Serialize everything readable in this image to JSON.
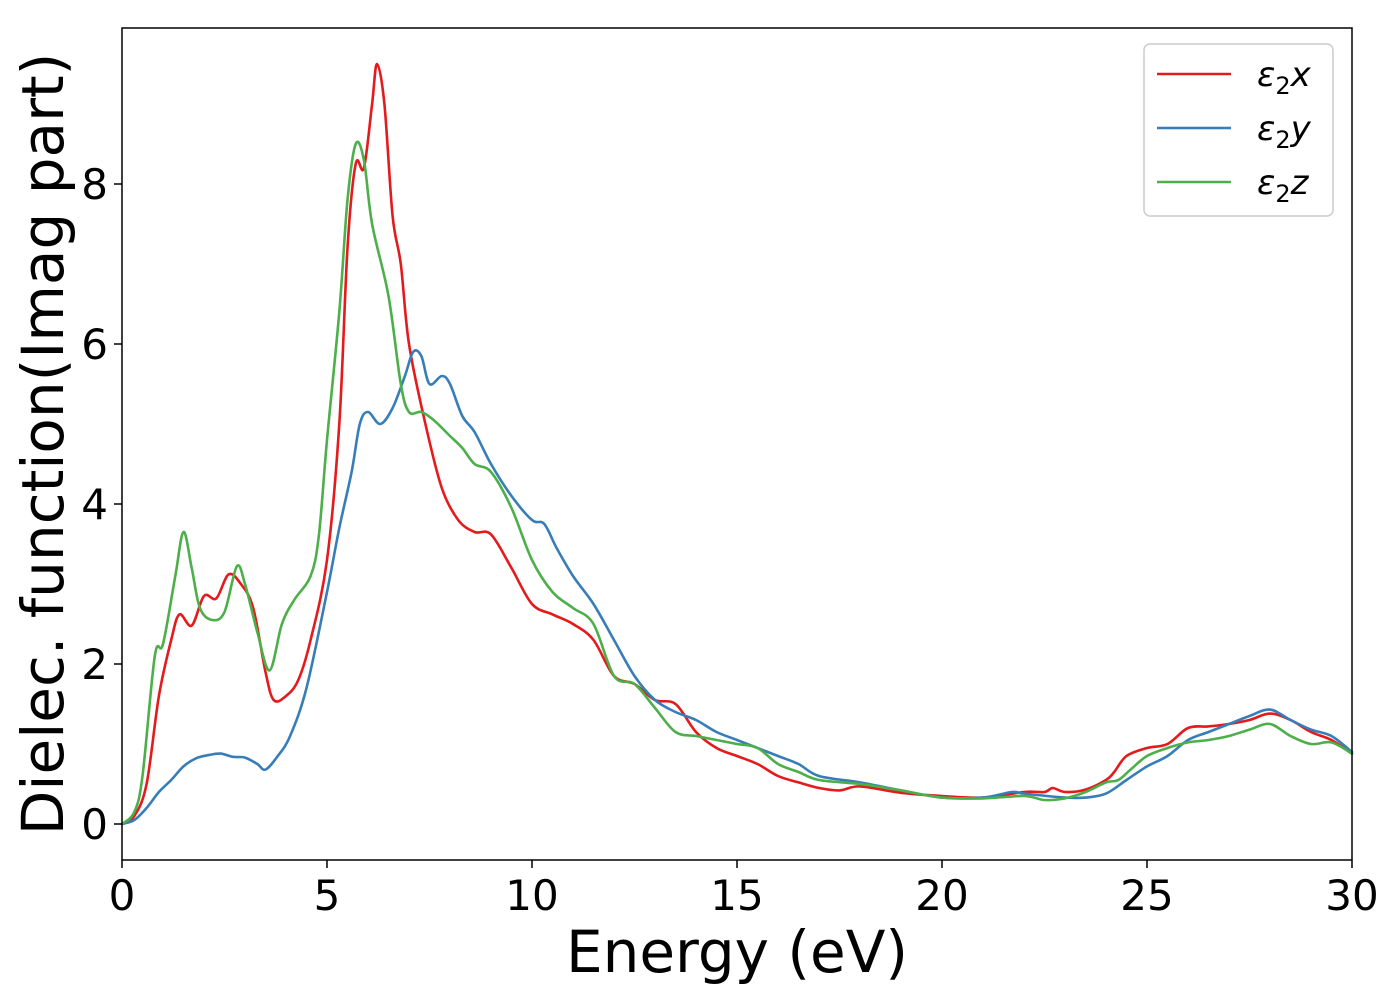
{
  "chart_data": {
    "type": "line",
    "xlabel": "Energy (eV)",
    "ylabel": "Dielec. function(Imag part)",
    "xlim": [
      0,
      30
    ],
    "ylim": [
      -0.45,
      9.95
    ],
    "xticks": [
      0,
      5,
      10,
      15,
      20,
      25,
      30
    ],
    "xtick_labels": [
      "0",
      "5",
      "10",
      "15",
      "20",
      "25",
      "30"
    ],
    "yticks": [
      0,
      2,
      4,
      6,
      8
    ],
    "ytick_labels": [
      "0",
      "2",
      "4",
      "6",
      "8"
    ],
    "grid": false,
    "legend_position": "top-right",
    "series": [
      {
        "name": "ε2x",
        "legend": {
          "base": "ε",
          "sub": "2",
          "tail": "x"
        },
        "color": "#e41a1c",
        "points": [
          [
            0,
            0
          ],
          [
            0.3,
            0.1
          ],
          [
            0.6,
            0.5
          ],
          [
            0.9,
            1.6
          ],
          [
            1.2,
            2.3
          ],
          [
            1.4,
            2.62
          ],
          [
            1.7,
            2.48
          ],
          [
            2.0,
            2.85
          ],
          [
            2.3,
            2.82
          ],
          [
            2.6,
            3.12
          ],
          [
            2.9,
            3.0
          ],
          [
            3.2,
            2.7
          ],
          [
            3.5,
            1.9
          ],
          [
            3.7,
            1.55
          ],
          [
            4.0,
            1.6
          ],
          [
            4.3,
            1.8
          ],
          [
            4.6,
            2.3
          ],
          [
            5.0,
            3.3
          ],
          [
            5.3,
            5.0
          ],
          [
            5.5,
            7.2
          ],
          [
            5.7,
            8.25
          ],
          [
            5.9,
            8.2
          ],
          [
            6.1,
            9.0
          ],
          [
            6.22,
            9.5
          ],
          [
            6.4,
            9.0
          ],
          [
            6.6,
            7.6
          ],
          [
            6.8,
            7.0
          ],
          [
            7.0,
            6.0
          ],
          [
            7.4,
            5.0
          ],
          [
            7.8,
            4.2
          ],
          [
            8.2,
            3.8
          ],
          [
            8.6,
            3.65
          ],
          [
            9.0,
            3.62
          ],
          [
            9.5,
            3.2
          ],
          [
            10.0,
            2.75
          ],
          [
            10.5,
            2.62
          ],
          [
            11.0,
            2.5
          ],
          [
            11.5,
            2.3
          ],
          [
            12.0,
            1.85
          ],
          [
            12.5,
            1.75
          ],
          [
            13.0,
            1.55
          ],
          [
            13.5,
            1.5
          ],
          [
            14.0,
            1.15
          ],
          [
            14.5,
            0.95
          ],
          [
            15.0,
            0.85
          ],
          [
            15.5,
            0.75
          ],
          [
            16.0,
            0.6
          ],
          [
            16.5,
            0.52
          ],
          [
            17.0,
            0.45
          ],
          [
            17.5,
            0.42
          ],
          [
            18.0,
            0.47
          ],
          [
            19.0,
            0.39
          ],
          [
            20.0,
            0.35
          ],
          [
            21.0,
            0.33
          ],
          [
            22.0,
            0.4
          ],
          [
            22.5,
            0.4
          ],
          [
            22.7,
            0.45
          ],
          [
            23.0,
            0.4
          ],
          [
            23.5,
            0.43
          ],
          [
            24.0,
            0.55
          ],
          [
            24.2,
            0.65
          ],
          [
            24.5,
            0.85
          ],
          [
            25.0,
            0.95
          ],
          [
            25.5,
            1.0
          ],
          [
            26.0,
            1.2
          ],
          [
            26.5,
            1.22
          ],
          [
            27.0,
            1.25
          ],
          [
            27.5,
            1.3
          ],
          [
            28.0,
            1.38
          ],
          [
            28.5,
            1.3
          ],
          [
            29.0,
            1.15
          ],
          [
            29.5,
            1.05
          ],
          [
            30.0,
            0.88
          ]
        ]
      },
      {
        "name": "ε2y",
        "legend": {
          "base": "ε",
          "sub": "2",
          "tail": "y"
        },
        "color": "#377eb8",
        "points": [
          [
            0,
            0
          ],
          [
            0.3,
            0.05
          ],
          [
            0.6,
            0.2
          ],
          [
            0.9,
            0.4
          ],
          [
            1.2,
            0.55
          ],
          [
            1.5,
            0.72
          ],
          [
            1.8,
            0.82
          ],
          [
            2.1,
            0.86
          ],
          [
            2.4,
            0.88
          ],
          [
            2.7,
            0.84
          ],
          [
            3.0,
            0.83
          ],
          [
            3.3,
            0.75
          ],
          [
            3.5,
            0.68
          ],
          [
            3.8,
            0.85
          ],
          [
            4.1,
            1.1
          ],
          [
            4.5,
            1.7
          ],
          [
            5.0,
            2.9
          ],
          [
            5.3,
            3.7
          ],
          [
            5.6,
            4.4
          ],
          [
            5.8,
            5.0
          ],
          [
            6.0,
            5.15
          ],
          [
            6.3,
            5.0
          ],
          [
            6.6,
            5.2
          ],
          [
            6.9,
            5.6
          ],
          [
            7.1,
            5.9
          ],
          [
            7.3,
            5.85
          ],
          [
            7.5,
            5.5
          ],
          [
            7.8,
            5.6
          ],
          [
            8.0,
            5.5
          ],
          [
            8.3,
            5.1
          ],
          [
            8.6,
            4.9
          ],
          [
            9.0,
            4.5
          ],
          [
            9.5,
            4.1
          ],
          [
            10.0,
            3.8
          ],
          [
            10.3,
            3.75
          ],
          [
            10.6,
            3.45
          ],
          [
            11.0,
            3.1
          ],
          [
            11.5,
            2.75
          ],
          [
            12.0,
            2.3
          ],
          [
            12.5,
            1.85
          ],
          [
            13.0,
            1.55
          ],
          [
            13.5,
            1.4
          ],
          [
            14.0,
            1.3
          ],
          [
            14.5,
            1.15
          ],
          [
            15.0,
            1.05
          ],
          [
            15.5,
            0.95
          ],
          [
            16.0,
            0.85
          ],
          [
            16.5,
            0.75
          ],
          [
            17.0,
            0.6
          ],
          [
            18.0,
            0.52
          ],
          [
            19.0,
            0.42
          ],
          [
            20.0,
            0.33
          ],
          [
            21.0,
            0.33
          ],
          [
            21.7,
            0.4
          ],
          [
            22.0,
            0.38
          ],
          [
            23.0,
            0.33
          ],
          [
            23.5,
            0.33
          ],
          [
            24.0,
            0.38
          ],
          [
            24.5,
            0.55
          ],
          [
            25.0,
            0.72
          ],
          [
            25.5,
            0.85
          ],
          [
            26.0,
            1.05
          ],
          [
            26.5,
            1.15
          ],
          [
            27.0,
            1.25
          ],
          [
            27.5,
            1.35
          ],
          [
            28.0,
            1.43
          ],
          [
            28.5,
            1.3
          ],
          [
            29.0,
            1.18
          ],
          [
            29.5,
            1.1
          ],
          [
            30.0,
            0.9
          ]
        ]
      },
      {
        "name": "ε2z",
        "legend": {
          "base": "ε",
          "sub": "2",
          "tail": "z"
        },
        "color": "#4daf4a",
        "points": [
          [
            0,
            0
          ],
          [
            0.3,
            0.15
          ],
          [
            0.5,
            0.6
          ],
          [
            0.8,
            2.1
          ],
          [
            1.0,
            2.25
          ],
          [
            1.3,
            3.1
          ],
          [
            1.5,
            3.65
          ],
          [
            1.7,
            3.2
          ],
          [
            1.9,
            2.7
          ],
          [
            2.2,
            2.55
          ],
          [
            2.5,
            2.65
          ],
          [
            2.8,
            3.22
          ],
          [
            3.0,
            3.0
          ],
          [
            3.3,
            2.4
          ],
          [
            3.6,
            1.92
          ],
          [
            3.9,
            2.5
          ],
          [
            4.2,
            2.8
          ],
          [
            4.6,
            3.1
          ],
          [
            4.8,
            3.6
          ],
          [
            5.0,
            4.8
          ],
          [
            5.3,
            6.4
          ],
          [
            5.5,
            7.8
          ],
          [
            5.7,
            8.5
          ],
          [
            5.9,
            8.3
          ],
          [
            6.1,
            7.5
          ],
          [
            6.5,
            6.6
          ],
          [
            6.8,
            5.5
          ],
          [
            7.0,
            5.15
          ],
          [
            7.3,
            5.15
          ],
          [
            7.6,
            5.05
          ],
          [
            8.0,
            4.85
          ],
          [
            8.3,
            4.7
          ],
          [
            8.6,
            4.5
          ],
          [
            9.0,
            4.4
          ],
          [
            9.5,
            3.95
          ],
          [
            10.0,
            3.3
          ],
          [
            10.5,
            2.9
          ],
          [
            11.0,
            2.7
          ],
          [
            11.5,
            2.5
          ],
          [
            12.0,
            1.85
          ],
          [
            12.5,
            1.75
          ],
          [
            13.0,
            1.45
          ],
          [
            13.5,
            1.15
          ],
          [
            14.0,
            1.1
          ],
          [
            14.5,
            1.05
          ],
          [
            15.0,
            1.0
          ],
          [
            15.5,
            0.95
          ],
          [
            16.0,
            0.75
          ],
          [
            16.5,
            0.65
          ],
          [
            17.0,
            0.55
          ],
          [
            18.0,
            0.5
          ],
          [
            19.0,
            0.42
          ],
          [
            20.0,
            0.33
          ],
          [
            21.0,
            0.32
          ],
          [
            22.0,
            0.35
          ],
          [
            22.5,
            0.3
          ],
          [
            23.0,
            0.32
          ],
          [
            23.5,
            0.4
          ],
          [
            24.0,
            0.52
          ],
          [
            24.3,
            0.55
          ],
          [
            24.6,
            0.68
          ],
          [
            25.0,
            0.85
          ],
          [
            25.5,
            0.95
          ],
          [
            26.0,
            1.02
          ],
          [
            26.5,
            1.05
          ],
          [
            27.0,
            1.1
          ],
          [
            27.5,
            1.18
          ],
          [
            28.0,
            1.25
          ],
          [
            28.5,
            1.1
          ],
          [
            29.0,
            1.0
          ],
          [
            29.5,
            1.02
          ],
          [
            30.0,
            0.88
          ]
        ]
      }
    ]
  }
}
